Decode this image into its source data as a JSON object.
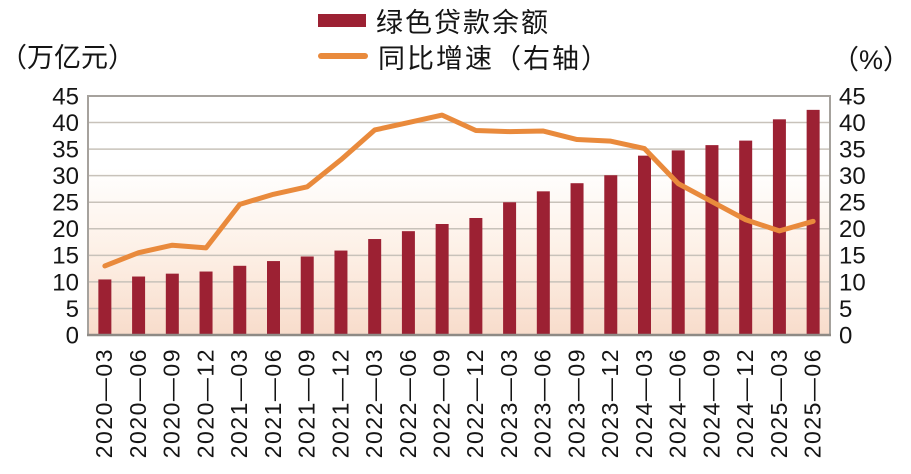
{
  "axis_left_unit": "（万亿元）",
  "axis_right_unit": "（%）",
  "legend": {
    "bar_label": "绿色贷款余额",
    "line_label": "同比增速（右轴）"
  },
  "colors": {
    "bar": "#9c2133",
    "line": "#e98a3c",
    "grid": "#c8c2ba",
    "border": "#a6a29d",
    "axis_bottom": "#8e8a85",
    "plot_bg_top": "#ffffff",
    "plot_bg_mid": "#fdf0e6",
    "plot_bg_bottom": "#f8dccb",
    "text": "#151515"
  },
  "chart_data": {
    "type": "bar+line",
    "title": "",
    "categories": [
      "2020—03",
      "2020—06",
      "2020—09",
      "2020—12",
      "2021—03",
      "2021—06",
      "2021—09",
      "2021—12",
      "2022—03",
      "2022—06",
      "2022—09",
      "2022—12",
      "2023—03",
      "2023—06",
      "2023—09",
      "2023—12",
      "2024—03",
      "2024—06",
      "2024—09",
      "2024—12",
      "2025—03",
      "2025—06"
    ],
    "series": [
      {
        "name": "绿色贷款余额",
        "type": "bar",
        "axis": "left",
        "values": [
          10.46,
          11.01,
          11.55,
          11.95,
          13.03,
          13.92,
          14.78,
          15.9,
          18.07,
          19.55,
          20.9,
          22.03,
          24.99,
          27.05,
          28.58,
          30.08,
          33.77,
          34.76,
          35.75,
          36.6,
          40.61,
          42.39
        ]
      },
      {
        "name": "同比增速（右轴）",
        "type": "line",
        "axis": "right",
        "values": [
          13.0,
          15.5,
          16.9,
          16.4,
          24.6,
          26.5,
          27.9,
          33.0,
          38.6,
          40.0,
          41.4,
          38.5,
          38.3,
          38.4,
          36.8,
          36.5,
          35.1,
          28.5,
          25.1,
          21.7,
          19.6,
          21.4
        ]
      }
    ],
    "ylabel_left": "（万亿元）",
    "ylabel_right": "（%）",
    "ylim_left": [
      0,
      45
    ],
    "ylim_right": [
      0,
      45
    ],
    "yticks": [
      0,
      5,
      10,
      15,
      20,
      25,
      30,
      35,
      40,
      45
    ],
    "grid": true,
    "legend_position": "top-center"
  }
}
